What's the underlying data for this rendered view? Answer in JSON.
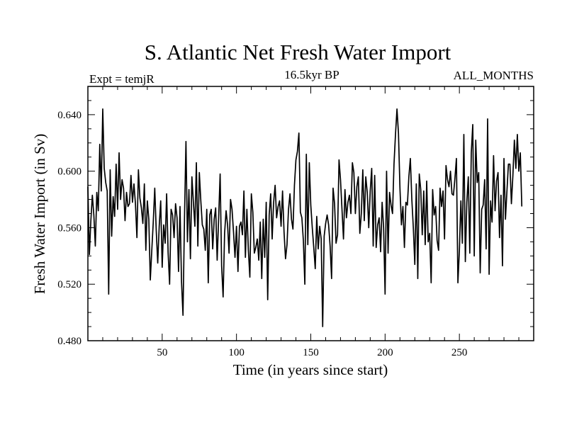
{
  "chart_data": {
    "type": "line",
    "title": "S. Atlantic Net Fresh Water Import",
    "subtitle_left": "Expt = temjR",
    "subtitle_center": "16.5kyr BP",
    "subtitle_right": "ALL_MONTHS",
    "xlabel": "Time (in years since start)",
    "ylabel": "Fresh Water Import (in Sv)",
    "xlim": [
      0,
      300
    ],
    "ylim": [
      0.48,
      0.66
    ],
    "xticks": [
      50,
      100,
      150,
      200,
      250
    ],
    "xtick_labels": [
      "50",
      "100",
      "150",
      "200",
      "250"
    ],
    "yticks": [
      0.48,
      0.52,
      0.56,
      0.6,
      0.64
    ],
    "ytick_labels": [
      "0.480",
      "0.520",
      "0.560",
      "0.600",
      "0.640"
    ],
    "series": [
      {
        "name": "Net Fresh Water Import",
        "x_start": 0,
        "x_step": 1,
        "values": [
          0.589,
          0.541,
          0.565,
          0.583,
          0.569,
          0.547,
          0.585,
          0.572,
          0.619,
          0.586,
          0.644,
          0.602,
          0.592,
          0.586,
          0.513,
          0.601,
          0.554,
          0.582,
          0.568,
          0.605,
          0.573,
          0.613,
          0.58,
          0.594,
          0.588,
          0.565,
          0.585,
          0.575,
          0.577,
          0.597,
          0.578,
          0.591,
          0.577,
          0.553,
          0.601,
          0.581,
          0.574,
          0.563,
          0.591,
          0.544,
          0.579,
          0.566,
          0.523,
          0.544,
          0.564,
          0.588,
          0.558,
          0.535,
          0.561,
          0.579,
          0.532,
          0.562,
          0.549,
          0.584,
          0.542,
          0.52,
          0.573,
          0.569,
          0.553,
          0.577,
          0.567,
          0.529,
          0.575,
          0.522,
          0.498,
          0.566,
          0.621,
          0.55,
          0.587,
          0.538,
          0.596,
          0.578,
          0.561,
          0.606,
          0.547,
          0.599,
          0.579,
          0.562,
          0.559,
          0.544,
          0.573,
          0.521,
          0.569,
          0.573,
          0.545,
          0.566,
          0.574,
          0.537,
          0.567,
          0.598,
          0.533,
          0.511,
          0.556,
          0.572,
          0.562,
          0.542,
          0.58,
          0.573,
          0.557,
          0.539,
          0.561,
          0.529,
          0.561,
          0.564,
          0.555,
          0.586,
          0.539,
          0.573,
          0.544,
          0.525,
          0.584,
          0.571,
          0.542,
          0.546,
          0.552,
          0.537,
          0.564,
          0.524,
          0.566,
          0.539,
          0.578,
          0.509,
          0.569,
          0.584,
          0.552,
          0.578,
          0.59,
          0.567,
          0.575,
          0.579,
          0.561,
          0.586,
          0.557,
          0.538,
          0.548,
          0.573,
          0.584,
          0.566,
          0.559,
          0.59,
          0.608,
          0.614,
          0.627,
          0.571,
          0.567,
          0.551,
          0.52,
          0.612,
          0.548,
          0.606,
          0.576,
          0.56,
          0.546,
          0.531,
          0.568,
          0.545,
          0.561,
          0.552,
          0.49,
          0.554,
          0.563,
          0.569,
          0.562,
          0.547,
          0.524,
          0.588,
          0.577,
          0.549,
          0.555,
          0.608,
          0.594,
          0.573,
          0.552,
          0.587,
          0.567,
          0.578,
          0.583,
          0.57,
          0.606,
          0.599,
          0.57,
          0.589,
          0.596,
          0.556,
          0.57,
          0.601,
          0.565,
          0.596,
          0.585,
          0.56,
          0.586,
          0.602,
          0.547,
          0.597,
          0.546,
          0.562,
          0.567,
          0.543,
          0.578,
          0.56,
          0.513,
          0.6,
          0.542,
          0.585,
          0.576,
          0.57,
          0.605,
          0.626,
          0.644,
          0.627,
          0.588,
          0.562,
          0.575,
          0.546,
          0.578,
          0.576,
          0.596,
          0.609,
          0.58,
          0.56,
          0.534,
          0.591,
          0.524,
          0.598,
          0.587,
          0.555,
          0.586,
          0.548,
          0.593,
          0.55,
          0.556,
          0.521,
          0.587,
          0.569,
          0.575,
          0.551,
          0.544,
          0.588,
          0.575,
          0.586,
          0.552,
          0.604,
          0.594,
          0.589,
          0.6,
          0.584,
          0.583,
          0.595,
          0.609,
          0.521,
          0.544,
          0.579,
          0.549,
          0.626,
          0.536,
          0.578,
          0.596,
          0.542,
          0.613,
          0.633,
          0.54,
          0.622,
          0.592,
          0.599,
          0.528,
          0.573,
          0.576,
          0.594,
          0.545,
          0.637,
          0.527,
          0.579,
          0.564,
          0.611,
          0.572,
          0.593,
          0.599,
          0.553,
          0.583,
          0.533,
          0.609,
          0.566,
          0.586,
          0.605,
          0.605,
          0.577,
          0.597,
          0.622,
          0.602,
          0.626,
          0.6,
          0.613,
          0.575
        ]
      }
    ]
  }
}
